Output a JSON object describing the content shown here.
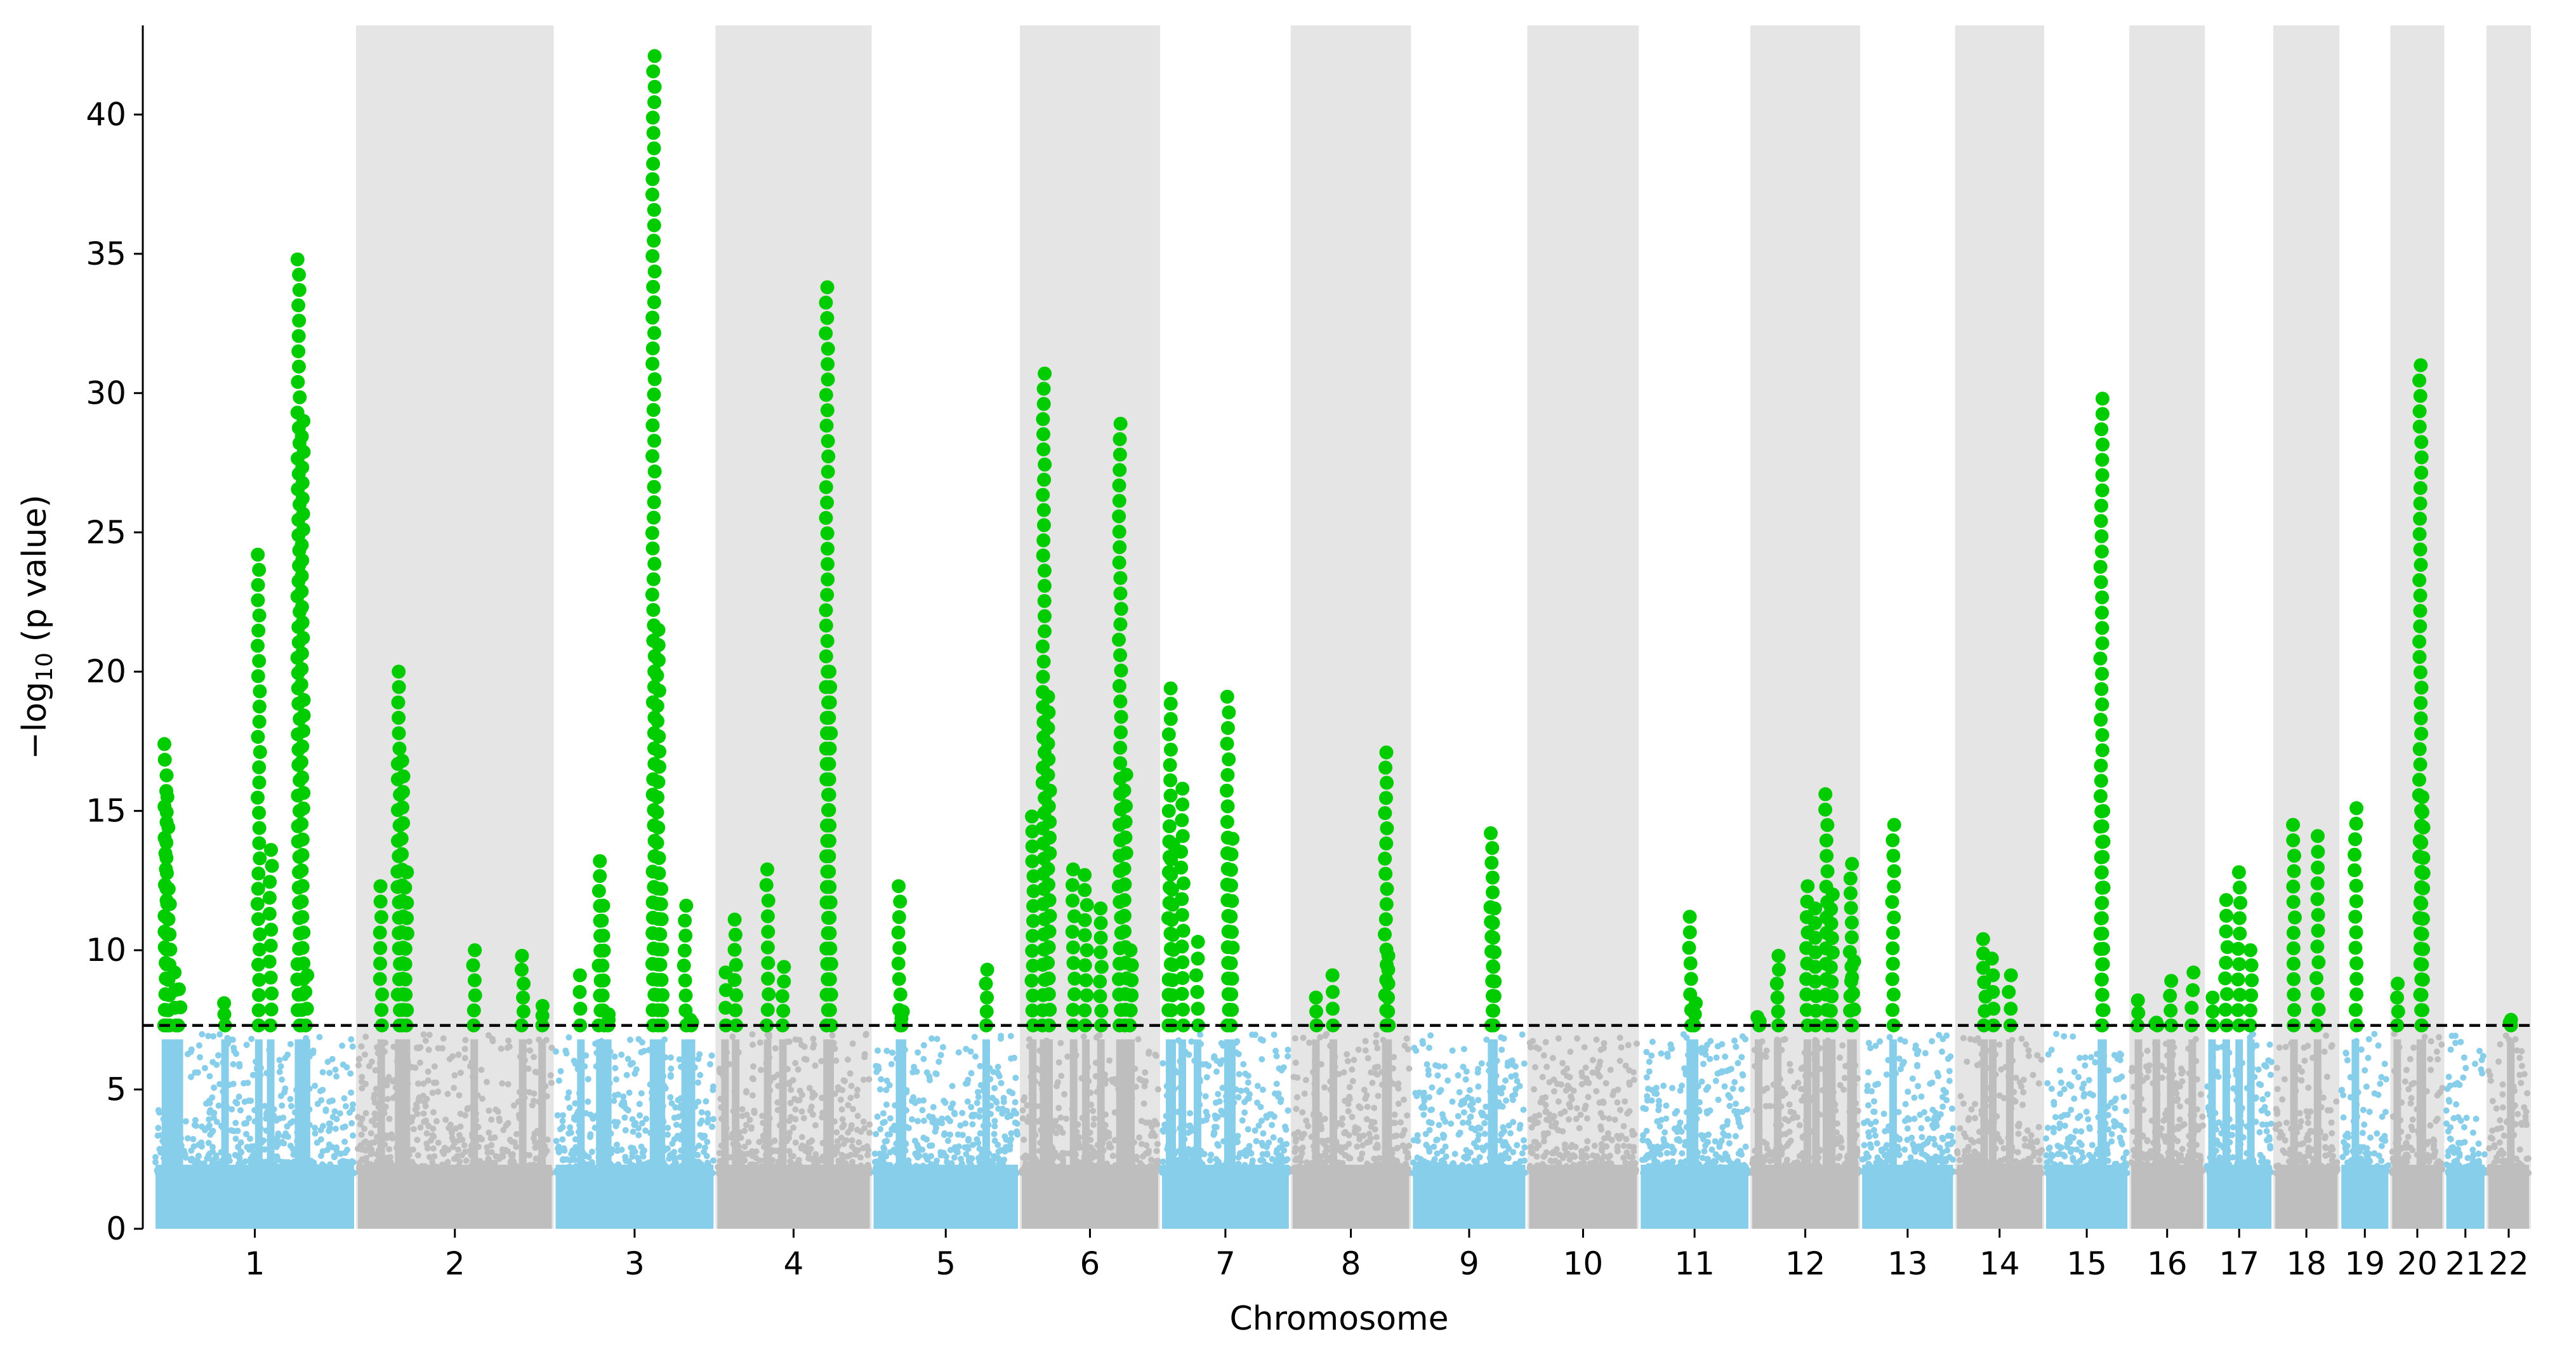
{
  "chart_data": {
    "type": "scatter",
    "subtype": "manhattan",
    "title": "",
    "xlabel": "Chromosome",
    "ylabel_prefix": "−log",
    "ylabel_subscript": "10",
    "ylabel_suffix": " (p value)",
    "ylim": [
      0,
      43.2
    ],
    "yticks": [
      0,
      5,
      10,
      15,
      20,
      25,
      30,
      35,
      40
    ],
    "significance_threshold": 7.3,
    "colors": {
      "odd_chromosome": "#87ceeb",
      "even_chromosome": "#bebebe",
      "significant": "#00cc00",
      "shade": "#e5e5e5",
      "threshold_line": "#000000"
    },
    "chromosomes": [
      {
        "label": "1",
        "length": 249,
        "significant_peaks": [
          [
            0.05,
            17.4
          ],
          [
            0.06,
            15.5
          ],
          [
            0.07,
            12.2
          ],
          [
            0.1,
            9.2
          ],
          [
            0.12,
            8.6
          ],
          [
            0.35,
            8.1
          ],
          [
            0.52,
            24.2
          ],
          [
            0.58,
            13.6
          ],
          [
            0.72,
            34.8
          ],
          [
            0.74,
            29.0
          ],
          [
            0.76,
            9.1
          ]
        ]
      },
      {
        "label": "2",
        "length": 243,
        "significant_peaks": [
          [
            0.12,
            12.3
          ],
          [
            0.21,
            20.0
          ],
          [
            0.23,
            16.8
          ],
          [
            0.25,
            12.8
          ],
          [
            0.6,
            10.0
          ],
          [
            0.85,
            9.8
          ],
          [
            0.95,
            8.0
          ]
        ]
      },
      {
        "label": "3",
        "length": 198,
        "significant_peaks": [
          [
            0.16,
            9.1
          ],
          [
            0.28,
            13.2
          ],
          [
            0.3,
            11.6
          ],
          [
            0.33,
            7.7
          ],
          [
            0.62,
            42.1
          ],
          [
            0.65,
            21.5
          ],
          [
            0.67,
            12.2
          ],
          [
            0.82,
            11.6
          ],
          [
            0.86,
            7.5
          ]
        ]
      },
      {
        "label": "4",
        "length": 191,
        "significant_peaks": [
          [
            0.05,
            9.2
          ],
          [
            0.12,
            11.1
          ],
          [
            0.33,
            12.9
          ],
          [
            0.43,
            9.4
          ],
          [
            0.72,
            33.8
          ],
          [
            0.74,
            20.0
          ]
        ]
      },
      {
        "label": "5",
        "length": 181,
        "significant_peaks": [
          [
            0.18,
            12.3
          ],
          [
            0.2,
            7.8
          ],
          [
            0.78,
            9.3
          ]
        ]
      },
      {
        "label": "6",
        "length": 171,
        "significant_peaks": [
          [
            0.08,
            14.8
          ],
          [
            0.16,
            30.7
          ],
          [
            0.2,
            19.1
          ],
          [
            0.38,
            12.9
          ],
          [
            0.47,
            12.7
          ],
          [
            0.58,
            11.5
          ],
          [
            0.72,
            28.9
          ],
          [
            0.76,
            16.3
          ],
          [
            0.8,
            10.0
          ]
        ]
      },
      {
        "label": "7",
        "length": 159,
        "significant_peaks": [
          [
            0.06,
            19.4
          ],
          [
            0.08,
            13.8
          ],
          [
            0.16,
            15.8
          ],
          [
            0.28,
            10.3
          ],
          [
            0.52,
            19.1
          ],
          [
            0.55,
            14.0
          ]
        ]
      },
      {
        "label": "8",
        "length": 146,
        "significant_peaks": [
          [
            0.2,
            8.3
          ],
          [
            0.35,
            9.1
          ],
          [
            0.8,
            17.1
          ],
          [
            0.82,
            9.8
          ]
        ]
      },
      {
        "label": "9",
        "length": 141,
        "significant_peaks": [
          [
            0.7,
            14.2
          ],
          [
            0.72,
            11.5
          ]
        ]
      },
      {
        "label": "10",
        "length": 135,
        "significant_peaks": []
      },
      {
        "label": "11",
        "length": 135,
        "significant_peaks": [
          [
            0.46,
            11.2
          ],
          [
            0.5,
            8.1
          ]
        ]
      },
      {
        "label": "12",
        "length": 133,
        "significant_peaks": [
          [
            0.06,
            7.6
          ],
          [
            0.24,
            9.8
          ],
          [
            0.52,
            12.3
          ],
          [
            0.6,
            11.5
          ],
          [
            0.7,
            15.6
          ],
          [
            0.75,
            12.0
          ],
          [
            0.93,
            13.1
          ],
          [
            0.95,
            9.6
          ]
        ]
      },
      {
        "label": "13",
        "length": 114,
        "significant_peaks": [
          [
            0.34,
            14.5
          ]
        ]
      },
      {
        "label": "14",
        "length": 107,
        "significant_peaks": [
          [
            0.32,
            10.4
          ],
          [
            0.42,
            9.7
          ],
          [
            0.62,
            9.1
          ]
        ]
      },
      {
        "label": "15",
        "length": 102,
        "significant_peaks": [
          [
            0.68,
            29.8
          ],
          [
            0.7,
            15.0
          ]
        ]
      },
      {
        "label": "16",
        "length": 90,
        "significant_peaks": [
          [
            0.1,
            8.2
          ],
          [
            0.35,
            7.4
          ],
          [
            0.55,
            8.9
          ],
          [
            0.85,
            9.2
          ]
        ]
      },
      {
        "label": "17",
        "length": 81,
        "significant_peaks": [
          [
            0.08,
            8.3
          ],
          [
            0.3,
            11.8
          ],
          [
            0.5,
            12.8
          ],
          [
            0.68,
            10.0
          ]
        ]
      },
      {
        "label": "18",
        "length": 78,
        "significant_peaks": [
          [
            0.3,
            14.5
          ],
          [
            0.68,
            14.1
          ]
        ]
      },
      {
        "label": "19",
        "length": 59,
        "significant_peaks": [
          [
            0.3,
            15.1
          ]
        ]
      },
      {
        "label": "20",
        "length": 63,
        "significant_peaks": [
          [
            0.1,
            8.8
          ],
          [
            0.56,
            31.0
          ],
          [
            0.6,
            15.5
          ]
        ]
      },
      {
        "label": "21",
        "length": 48,
        "significant_peaks": []
      },
      {
        "label": "22",
        "length": 51,
        "significant_peaks": [
          [
            0.55,
            7.5
          ]
        ]
      }
    ]
  }
}
